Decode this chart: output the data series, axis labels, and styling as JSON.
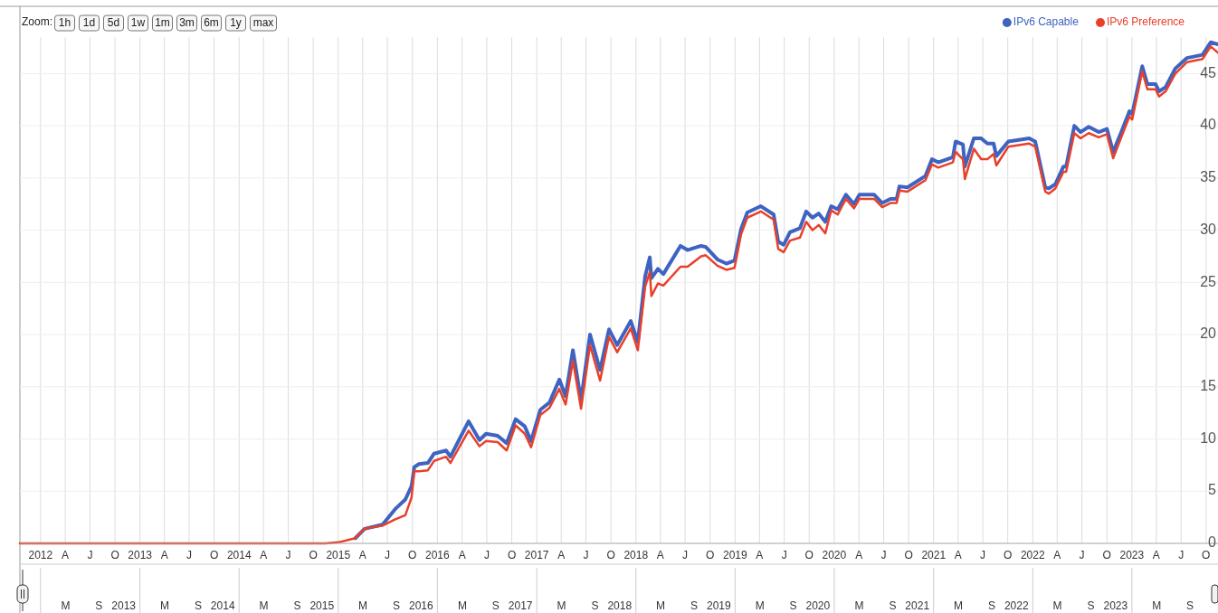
{
  "chart_data": {
    "type": "line",
    "annotations": [
      "Zoom:",
      "1h",
      "1d",
      "5d",
      "1w",
      "1m",
      "3m",
      "6m",
      "1y",
      "max"
    ],
    "x": [
      "2011-10-17",
      "2014-11-15",
      "2015-01-01",
      "2015-03-05",
      "2015-04-08",
      "2015-06-13",
      "2015-07-30",
      "2015-09-05",
      "2015-09-28",
      "2015-10-08",
      "2015-10-25",
      "2015-11-27",
      "2015-12-20",
      "2016-02-02",
      "2016-02-18",
      "2016-04-25",
      "2016-06-04",
      "2016-06-28",
      "2016-08-10",
      "2016-09-12",
      "2016-10-15",
      "2016-11-18",
      "2016-12-11",
      "2017-01-14",
      "2017-02-17",
      "2017-03-25",
      "2017-04-17",
      "2017-05-14",
      "2017-06-13",
      "2017-07-16",
      "2017-08-22",
      "2017-09-24",
      "2017-10-24",
      "2017-12-13",
      "2018-01-08",
      "2018-02-04",
      "2018-02-21",
      "2018-02-27",
      "2018-03-23",
      "2018-04-12",
      "2018-06-14",
      "2018-07-10",
      "2018-08-29",
      "2018-09-15",
      "2018-10-28",
      "2018-11-30",
      "2018-12-30",
      "2019-01-23",
      "2019-02-15",
      "2019-04-06",
      "2019-05-23",
      "2019-06-09",
      "2019-06-29",
      "2019-07-22",
      "2019-08-28",
      "2019-09-20",
      "2019-10-13",
      "2019-11-05",
      "2019-11-29",
      "2019-12-21",
      "2020-01-14",
      "2020-02-13",
      "2020-03-14",
      "2020-04-03",
      "2020-05-27",
      "2020-06-26",
      "2020-07-26",
      "2020-08-18",
      "2020-08-28",
      "2020-09-27",
      "2020-12-02",
      "2020-12-26",
      "2021-01-18",
      "2021-03-13",
      "2021-03-23",
      "2021-04-19",
      "2021-04-26",
      "2021-05-29",
      "2021-06-25",
      "2021-07-18",
      "2021-08-10",
      "2021-08-20",
      "2021-10-03",
      "2021-12-19",
      "2022-01-10",
      "2022-02-16",
      "2022-03-01",
      "2022-03-25",
      "2022-04-24",
      "2022-05-04",
      "2022-06-03",
      "2022-06-26",
      "2022-07-26",
      "2022-09-01",
      "2022-10-01",
      "2022-10-24",
      "2022-11-23",
      "2022-12-23",
      "2023-01-02",
      "2023-02-08",
      "2023-02-27",
      "2023-03-29",
      "2023-04-11",
      "2023-05-05",
      "2023-06-10",
      "2023-07-23",
      "2023-09-18",
      "2023-10-18",
      "2023-11-14"
    ],
    "series": [
      {
        "name": "IPv6 Capable",
        "color": "#3f63c0",
        "values": [
          null,
          null,
          null,
          0.5,
          1.4,
          1.8,
          3.3,
          4.2,
          5.5,
          7.3,
          7.6,
          7.7,
          8.6,
          8.9,
          8.3,
          11.7,
          9.9,
          10.5,
          10.3,
          9.6,
          11.9,
          11.2,
          9.8,
          12.8,
          13.5,
          15.7,
          14.1,
          18.5,
          13.7,
          20.0,
          16.6,
          20.5,
          19.0,
          21.3,
          19.3,
          25.6,
          27.4,
          25.4,
          26.3,
          25.8,
          28.5,
          28.1,
          28.5,
          28.4,
          27.2,
          26.8,
          27.1,
          30.1,
          31.7,
          32.3,
          31.5,
          28.9,
          28.6,
          29.8,
          30.2,
          31.8,
          31.2,
          31.6,
          30.8,
          32.3,
          32.0,
          33.4,
          32.5,
          33.4,
          33.4,
          32.6,
          33.0,
          33.0,
          34.2,
          34.1,
          35.2,
          36.8,
          36.5,
          37.0,
          38.5,
          38.2,
          36.1,
          38.8,
          38.8,
          38.3,
          38.3,
          37.1,
          38.5,
          38.8,
          38.5,
          34.1,
          34.0,
          34.4,
          36.1,
          36.1,
          40.0,
          39.4,
          39.9,
          39.4,
          39.7,
          37.5,
          39.4,
          41.4,
          41.1,
          45.7,
          44.0,
          44.0,
          43.3,
          43.7,
          45.5,
          46.5,
          46.8,
          48.0,
          47.8
        ]
      },
      {
        "name": "IPv6 Preference",
        "color": "#e8402a",
        "values": [
          0,
          0,
          0.1,
          0.5,
          1.4,
          1.7,
          2.3,
          2.7,
          4.4,
          6.9,
          6.9,
          7.0,
          7.9,
          8.3,
          7.7,
          10.8,
          9.3,
          9.8,
          9.7,
          8.9,
          11.3,
          10.5,
          9.2,
          12.3,
          13.0,
          14.8,
          13.3,
          17.5,
          12.9,
          19.0,
          15.6,
          19.8,
          18.3,
          20.6,
          18.5,
          24.6,
          26.0,
          23.7,
          24.9,
          24.7,
          26.5,
          26.5,
          27.5,
          27.6,
          26.6,
          26.2,
          26.4,
          29.6,
          31.2,
          31.8,
          31.0,
          28.2,
          27.9,
          29.0,
          29.3,
          30.8,
          30.0,
          30.5,
          29.7,
          31.9,
          31.5,
          33.0,
          32.1,
          33.0,
          33.0,
          32.2,
          32.6,
          32.6,
          33.8,
          33.7,
          34.8,
          36.3,
          36.0,
          36.5,
          37.5,
          36.8,
          34.9,
          37.8,
          36.8,
          36.8,
          37.3,
          36.2,
          38.0,
          38.3,
          38.0,
          33.7,
          33.5,
          34.0,
          35.6,
          35.6,
          39.3,
          38.8,
          39.3,
          38.9,
          39.2,
          36.9,
          38.9,
          40.9,
          40.6,
          45.2,
          43.5,
          43.5,
          42.8,
          43.3,
          45.0,
          46.1,
          46.4,
          47.6,
          47.0
        ]
      }
    ],
    "xlim": [
      "2011-10-17",
      "2023-11-14"
    ],
    "xticks": [
      {
        "value": "2012",
        "label": "2012"
      },
      {
        "value": "2012-04",
        "label": "A"
      },
      {
        "value": "2012-07",
        "label": "J"
      },
      {
        "value": "2012-10",
        "label": "O"
      },
      {
        "value": "2013",
        "label": "2013"
      },
      {
        "value": "2013-04",
        "label": "A"
      },
      {
        "value": "2013-07",
        "label": "J"
      },
      {
        "value": "2013-10",
        "label": "O"
      },
      {
        "value": "2014",
        "label": "2014"
      },
      {
        "value": "2014-04",
        "label": "A"
      },
      {
        "value": "2014-07",
        "label": "J"
      },
      {
        "value": "2014-10",
        "label": "O"
      },
      {
        "value": "2015",
        "label": "2015"
      },
      {
        "value": "2015-04",
        "label": "A"
      },
      {
        "value": "2015-07",
        "label": "J"
      },
      {
        "value": "2015-10",
        "label": "O"
      },
      {
        "value": "2016",
        "label": "2016"
      },
      {
        "value": "2016-04",
        "label": "A"
      },
      {
        "value": "2016-07",
        "label": "J"
      },
      {
        "value": "2016-10",
        "label": "O"
      },
      {
        "value": "2017",
        "label": "2017"
      },
      {
        "value": "2017-04",
        "label": "A"
      },
      {
        "value": "2017-07",
        "label": "J"
      },
      {
        "value": "2017-10",
        "label": "O"
      },
      {
        "value": "2018",
        "label": "2018"
      },
      {
        "value": "2018-04",
        "label": "A"
      },
      {
        "value": "2018-07",
        "label": "J"
      },
      {
        "value": "2018-10",
        "label": "O"
      },
      {
        "value": "2019",
        "label": "2019"
      },
      {
        "value": "2019-04",
        "label": "A"
      },
      {
        "value": "2019-07",
        "label": "J"
      },
      {
        "value": "2019-10",
        "label": "O"
      },
      {
        "value": "2020",
        "label": "2020"
      },
      {
        "value": "2020-04",
        "label": "A"
      },
      {
        "value": "2020-07",
        "label": "J"
      },
      {
        "value": "2020-10",
        "label": "O"
      },
      {
        "value": "2021",
        "label": "2021"
      },
      {
        "value": "2021-04",
        "label": "A"
      },
      {
        "value": "2021-07",
        "label": "J"
      },
      {
        "value": "2021-10",
        "label": "O"
      },
      {
        "value": "2022",
        "label": "2022"
      },
      {
        "value": "2022-04",
        "label": "A"
      },
      {
        "value": "2022-07",
        "label": "J"
      },
      {
        "value": "2022-10",
        "label": "O"
      },
      {
        "value": "2023",
        "label": "2023"
      },
      {
        "value": "2023-04",
        "label": "A"
      },
      {
        "value": "2023-07",
        "label": "J"
      },
      {
        "value": "2023-10",
        "label": "O"
      }
    ],
    "x2lim": [
      "2011-12-16",
      "2024-01-13"
    ],
    "x2ticks": [
      {
        "value": "2012-06-01",
        "label": "M"
      },
      {
        "value": "2012-10-02",
        "label": "S"
      },
      {
        "value": "2013",
        "label": "2013"
      },
      {
        "value": "2013-06-01",
        "label": "M"
      },
      {
        "value": "2013-10-02",
        "label": "S"
      },
      {
        "value": "2014",
        "label": "2014"
      },
      {
        "value": "2014-06-01",
        "label": "M"
      },
      {
        "value": "2014-10-02",
        "label": "S"
      },
      {
        "value": "2015",
        "label": "2015"
      },
      {
        "value": "2015-06-01",
        "label": "M"
      },
      {
        "value": "2015-10-02",
        "label": "S"
      },
      {
        "value": "2016",
        "label": "2016"
      },
      {
        "value": "2016-06-01",
        "label": "M"
      },
      {
        "value": "2016-10-02",
        "label": "S"
      },
      {
        "value": "2017",
        "label": "2017"
      },
      {
        "value": "2017-06-01",
        "label": "M"
      },
      {
        "value": "2017-10-02",
        "label": "S"
      },
      {
        "value": "2018",
        "label": "2018"
      },
      {
        "value": "2018-06-01",
        "label": "M"
      },
      {
        "value": "2018-10-02",
        "label": "S"
      },
      {
        "value": "2019",
        "label": "2019"
      },
      {
        "value": "2019-06-01",
        "label": "M"
      },
      {
        "value": "2019-10-02",
        "label": "S"
      },
      {
        "value": "2020",
        "label": "2020"
      },
      {
        "value": "2020-06-01",
        "label": "M"
      },
      {
        "value": "2020-10-02",
        "label": "S"
      },
      {
        "value": "2021",
        "label": "2021"
      },
      {
        "value": "2021-06-01",
        "label": "M"
      },
      {
        "value": "2021-10-02",
        "label": "S"
      },
      {
        "value": "2022",
        "label": "2022"
      },
      {
        "value": "2022-06-01",
        "label": "M"
      },
      {
        "value": "2022-10-02",
        "label": "S"
      },
      {
        "value": "2023",
        "label": "2023"
      },
      {
        "value": "2023-06-01",
        "label": "M"
      },
      {
        "value": "2023-10-02",
        "label": "S"
      }
    ],
    "ylim": [
      0,
      48.5
    ],
    "yticks": [
      0,
      5,
      10,
      15,
      20,
      25,
      30,
      35,
      40,
      45
    ],
    "grid": true,
    "legend": "top right"
  }
}
